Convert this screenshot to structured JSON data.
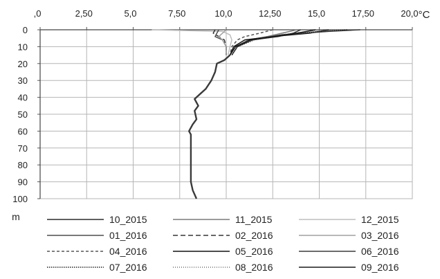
{
  "chart_data": {
    "type": "line",
    "orientation": "x-top-y-down",
    "x_unit_label": "°C",
    "y_unit_label": "m",
    "xlim": [
      0,
      20
    ],
    "ylim": [
      0,
      100
    ],
    "x_ticks": [
      0,
      2.5,
      5,
      7.5,
      10,
      12.5,
      15,
      17.5,
      20
    ],
    "x_tick_labels": [
      ",0",
      "2,50",
      "5,0",
      "7,50",
      "10,0",
      "12,50",
      "15,0",
      "17,50",
      "20,0"
    ],
    "y_ticks": [
      0,
      10,
      20,
      30,
      40,
      50,
      60,
      70,
      80,
      90,
      100
    ],
    "y_tick_labels": [
      "0",
      "10",
      "20",
      "30",
      "40",
      "50",
      "60",
      "70",
      "80",
      "90",
      "100"
    ],
    "grid": true,
    "legend_position": "bottom",
    "series": [
      {
        "name": "10_2015",
        "color": "#2b2b2b",
        "dash": "solid",
        "temps": [
          14.0,
          13.6,
          12.8,
          11.4,
          10.6,
          10.3
        ],
        "depths": [
          0,
          2,
          4,
          6,
          10,
          15
        ]
      },
      {
        "name": "11_2015",
        "color": "#7a7a7a",
        "dash": "solid",
        "temps": [
          13.8,
          13.0,
          12.2,
          11.2,
          10.5,
          10.2
        ],
        "depths": [
          0,
          2,
          4,
          6,
          10,
          15
        ]
      },
      {
        "name": "12_2015",
        "color": "#bdbdbd",
        "dash": "solid",
        "temps": [
          6.0,
          9.8,
          10.2,
          10.3,
          10.2,
          10.1
        ],
        "depths": [
          0,
          1,
          3,
          6,
          10,
          15
        ]
      },
      {
        "name": "01_2016",
        "color": "#4d4d4d",
        "dash": "solid",
        "temps": [
          9.6,
          9.5,
          9.4,
          9.8,
          10.0,
          10.0
        ],
        "depths": [
          0,
          2,
          4,
          6,
          10,
          15
        ]
      },
      {
        "name": "02_2016",
        "color": "#333333",
        "dash": "long-dash",
        "temps": [
          9.4,
          9.3,
          9.6,
          9.9,
          10.0,
          10.0
        ],
        "depths": [
          0,
          2,
          4,
          6,
          10,
          15
        ]
      },
      {
        "name": "03_2016",
        "color": "#a0a0a0",
        "dash": "solid",
        "temps": [
          10.0,
          9.8,
          9.6,
          9.8,
          10.0,
          10.0
        ],
        "depths": [
          0,
          2,
          4,
          6,
          10,
          15
        ]
      },
      {
        "name": "04_2016",
        "color": "#555555",
        "dash": "dashed",
        "temps": [
          12.5,
          11.8,
          11.0,
          10.6,
          10.3,
          10.2
        ],
        "depths": [
          0,
          2,
          4,
          6,
          10,
          15
        ]
      },
      {
        "name": "05_2016",
        "color": "#111111",
        "dash": "solid",
        "temps": [
          15.5,
          14.5,
          12.5,
          11.0,
          10.4,
          10.2
        ],
        "depths": [
          0,
          2,
          4,
          6,
          10,
          15
        ]
      },
      {
        "name": "06_2016",
        "color": "#3a3a3a",
        "dash": "solid",
        "temps": [
          17.2,
          15.5,
          13.0,
          11.3,
          10.5,
          10.2
        ],
        "depths": [
          0,
          1,
          3,
          6,
          10,
          15
        ]
      },
      {
        "name": "07_2016",
        "color": "#222222",
        "dash": "dotted",
        "temps": [
          16.5,
          15.0,
          13.0,
          11.5,
          10.6,
          10.3
        ],
        "depths": [
          0,
          1,
          3,
          6,
          10,
          15
        ]
      },
      {
        "name": "08_2016",
        "color": "#6a6a6a",
        "dash": "fine-dotted",
        "temps": [
          16.0,
          14.5,
          12.8,
          11.4,
          10.5,
          10.2
        ],
        "depths": [
          0,
          1,
          3,
          6,
          10,
          15
        ]
      },
      {
        "name": "09_2016",
        "color": "#1a1a1a",
        "dash": "solid",
        "temps": [
          14.8,
          13.8,
          12.5,
          11.3,
          10.5,
          10.2
        ],
        "depths": [
          0,
          2,
          4,
          6,
          10,
          15
        ]
      }
    ],
    "deep_profile": {
      "temps": [
        10.2,
        9.9,
        9.5,
        9.4,
        9.2,
        8.9,
        8.6,
        8.3,
        8.5,
        8.3,
        8.4,
        8.2,
        8.0,
        8.1,
        8.1,
        8.1,
        8.1,
        8.1,
        8.2,
        8.4
      ],
      "depths": [
        15,
        18,
        20,
        25,
        30,
        35,
        38,
        41,
        45,
        48,
        53,
        56,
        60,
        62,
        70,
        80,
        85,
        90,
        95,
        100
      ]
    }
  }
}
